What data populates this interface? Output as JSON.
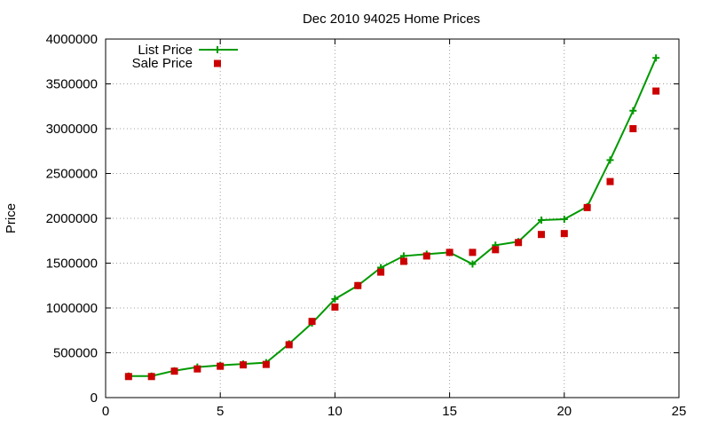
{
  "chart_data": {
    "type": "line",
    "title": "Dec 2010 94025 Home Prices",
    "xlabel": "",
    "ylabel": "Price",
    "xlim": [
      0,
      25
    ],
    "ylim": [
      0,
      4000000
    ],
    "x_ticks": [
      0,
      5,
      10,
      15,
      20,
      25
    ],
    "y_ticks": [
      0,
      500000,
      1000000,
      1500000,
      2000000,
      2500000,
      3000000,
      3500000,
      4000000
    ],
    "grid": true,
    "legend_position": "top-left",
    "series": [
      {
        "name": "List Price",
        "style": "line-plus",
        "color": "#009900",
        "x": [
          1,
          2,
          3,
          4,
          5,
          6,
          7,
          8,
          9,
          10,
          11,
          12,
          13,
          14,
          15,
          16,
          17,
          18,
          19,
          20,
          21,
          22,
          23,
          24
        ],
        "values": [
          240000,
          240000,
          300000,
          340000,
          360000,
          375000,
          390000,
          600000,
          830000,
          1100000,
          1250000,
          1450000,
          1580000,
          1600000,
          1620000,
          1490000,
          1700000,
          1740000,
          1980000,
          1990000,
          2130000,
          2650000,
          3200000,
          3790000
        ]
      },
      {
        "name": "Sale Price",
        "style": "square-points",
        "color": "#cc0000",
        "x": [
          1,
          2,
          3,
          4,
          5,
          6,
          7,
          8,
          9,
          10,
          11,
          12,
          13,
          14,
          15,
          16,
          17,
          18,
          19,
          20,
          21,
          22,
          23,
          24
        ],
        "values": [
          235000,
          235000,
          295000,
          320000,
          350000,
          365000,
          370000,
          590000,
          850000,
          1010000,
          1250000,
          1400000,
          1520000,
          1580000,
          1620000,
          1620000,
          1650000,
          1730000,
          1820000,
          1830000,
          2120000,
          2410000,
          3000000,
          3420000
        ]
      }
    ]
  }
}
